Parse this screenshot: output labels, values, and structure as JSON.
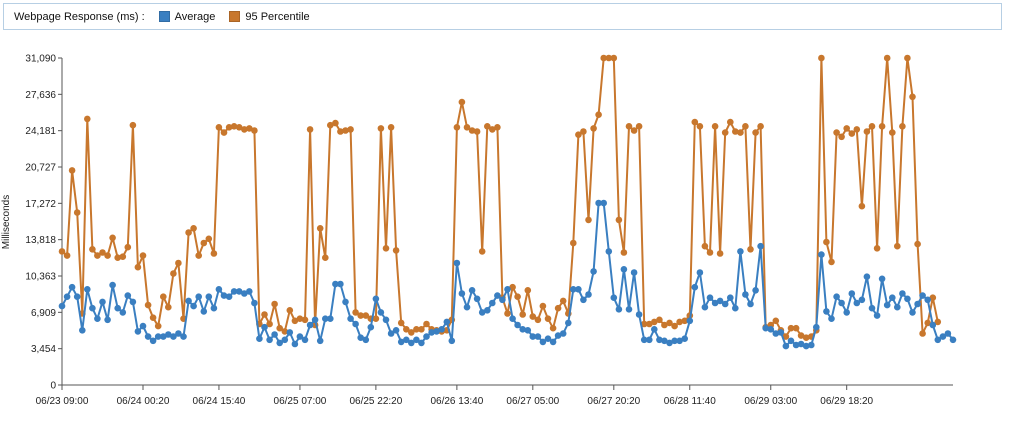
{
  "legend": {
    "title": "Webpage Response (ms) :",
    "items": [
      {
        "label": "Average",
        "color": "#3a7fc1"
      },
      {
        "label": "95 Percentile",
        "color": "#c8772d"
      }
    ]
  },
  "chart_data": {
    "type": "line",
    "title": "Webpage Response (ms)",
    "xlabel": "",
    "ylabel": "Milliseconds",
    "ylim": [
      0,
      31090
    ],
    "yticks": [
      0,
      3454,
      6909,
      10363,
      13818,
      17272,
      20727,
      24181,
      27636,
      31090
    ],
    "ytick_labels": [
      "0",
      "3,454",
      "6,909",
      "10,363",
      "13,818",
      "17,272",
      "20,727",
      "24,181",
      "27,636",
      "31,090"
    ],
    "x_ticks": [
      {
        "index": 0,
        "label": "06/23 09:00"
      },
      {
        "index": 16,
        "label": "06/24 00:20"
      },
      {
        "index": 31,
        "label": "06/24 15:40"
      },
      {
        "index": 47,
        "label": "06/25 07:00"
      },
      {
        "index": 62,
        "label": "06/25 22:20"
      },
      {
        "index": 78,
        "label": "06/26 13:40"
      },
      {
        "index": 93,
        "label": "06/27 05:00"
      },
      {
        "index": 109,
        "label": "06/27 20:20"
      },
      {
        "index": 124,
        "label": "06/28 11:40"
      },
      {
        "index": 140,
        "label": "06/29 03:00"
      },
      {
        "index": 155,
        "label": "06/29 18:20"
      }
    ],
    "grid": false,
    "legend_position": "top",
    "series": [
      {
        "name": "Average",
        "color": "#3a7fc1",
        "values": [
          7500,
          8400,
          9300,
          8400,
          5200,
          9100,
          7300,
          6300,
          7900,
          6200,
          9500,
          7300,
          6900,
          8500,
          7900,
          5100,
          5600,
          4600,
          4200,
          4600,
          4600,
          4800,
          4600,
          4900,
          4600,
          8000,
          7500,
          8400,
          7000,
          8400,
          7300,
          9100,
          8500,
          8400,
          8900,
          8900,
          8700,
          8900,
          7800,
          4400,
          5500,
          4300,
          4800,
          4000,
          4300,
          5000,
          3900,
          4600,
          4300,
          5700,
          6200,
          4200,
          6300,
          6300,
          9600,
          9600,
          7900,
          6300,
          5800,
          4500,
          4300,
          5500,
          8200,
          6900,
          6200,
          4900,
          5200,
          4100,
          4300,
          4000,
          4300,
          4000,
          4600,
          5000,
          5100,
          5300,
          6000,
          4200,
          11600,
          8700,
          7400,
          9000,
          8200,
          6900,
          7100,
          7800,
          8500,
          8100,
          9100,
          6300,
          5700,
          5300,
          5200,
          4600,
          4600,
          4100,
          4400,
          4100,
          4700,
          4900,
          5900,
          9100,
          9100,
          8100,
          8600,
          10800,
          17300,
          17300,
          12700,
          8300,
          7200,
          11000,
          7200,
          10700,
          6700,
          4300,
          4300,
          5300,
          4300,
          4200,
          4000,
          4200,
          4200,
          4400,
          6100,
          9300,
          10700,
          7400,
          8300,
          7800,
          8000,
          7700,
          8300,
          7300,
          12700,
          8600,
          7700,
          9000,
          13200,
          5400,
          5300,
          4900,
          5000,
          3700,
          4200,
          3800,
          3900,
          3700,
          3800,
          5500,
          12400,
          7000,
          6300,
          8400,
          7800,
          6900,
          8700,
          7800,
          8100,
          10300,
          7300,
          6600,
          10100,
          7600,
          8300,
          7400,
          8700,
          8200,
          6900,
          7700,
          8500,
          8100,
          5700,
          4300,
          4600,
          4900,
          4300
        ]
      },
      {
        "name": "95 Percentile",
        "color": "#c8772d",
        "values": [
          12700,
          12300,
          20400,
          16400,
          6800,
          25300,
          12900,
          12300,
          12600,
          12300,
          14000,
          12100,
          12200,
          13100,
          24700,
          11200,
          12300,
          7600,
          6400,
          5600,
          8400,
          7400,
          10600,
          11600,
          6300,
          14500,
          14900,
          12300,
          13500,
          13900,
          12500,
          24500,
          24000,
          24500,
          24600,
          24500,
          24300,
          24400,
          24200,
          5800,
          6700,
          5800,
          7700,
          5400,
          5100,
          7100,
          6100,
          6300,
          6200,
          24300,
          5700,
          14900,
          12100,
          24700,
          24900,
          24100,
          24200,
          24300,
          6900,
          6600,
          6600,
          6300,
          6300,
          24400,
          13000,
          24500,
          12800,
          5900,
          5300,
          5000,
          5300,
          5300,
          5800,
          5300,
          5200,
          5100,
          5200,
          6200,
          24500,
          26900,
          24500,
          24200,
          24100,
          12700,
          24600,
          24300,
          24500,
          8300,
          6800,
          9300,
          8400,
          6700,
          9000,
          6500,
          6200,
          7500,
          6300,
          5400,
          7300,
          8000,
          6800,
          13500,
          23800,
          24100,
          15700,
          24400,
          25700,
          31090,
          31090,
          31090,
          15700,
          12600,
          24600,
          24200,
          24600,
          5800,
          5800,
          6000,
          6200,
          5700,
          5900,
          5600,
          6000,
          6100,
          6600,
          25000,
          24600,
          13200,
          12600,
          24600,
          12500,
          24000,
          25000,
          24100,
          24000,
          24600,
          12900,
          24000,
          24600,
          5500,
          5700,
          6100,
          5200,
          4600,
          5400,
          5400,
          4700,
          4500,
          4600,
          5200,
          31090,
          13600,
          11700,
          24000,
          23600,
          24400,
          23900,
          24300,
          17000,
          24100,
          24600,
          13000,
          24600,
          31090,
          24000,
          13200,
          24600,
          31090,
          27400,
          13400,
          4900,
          5900,
          8300,
          6000
        ]
      }
    ]
  }
}
